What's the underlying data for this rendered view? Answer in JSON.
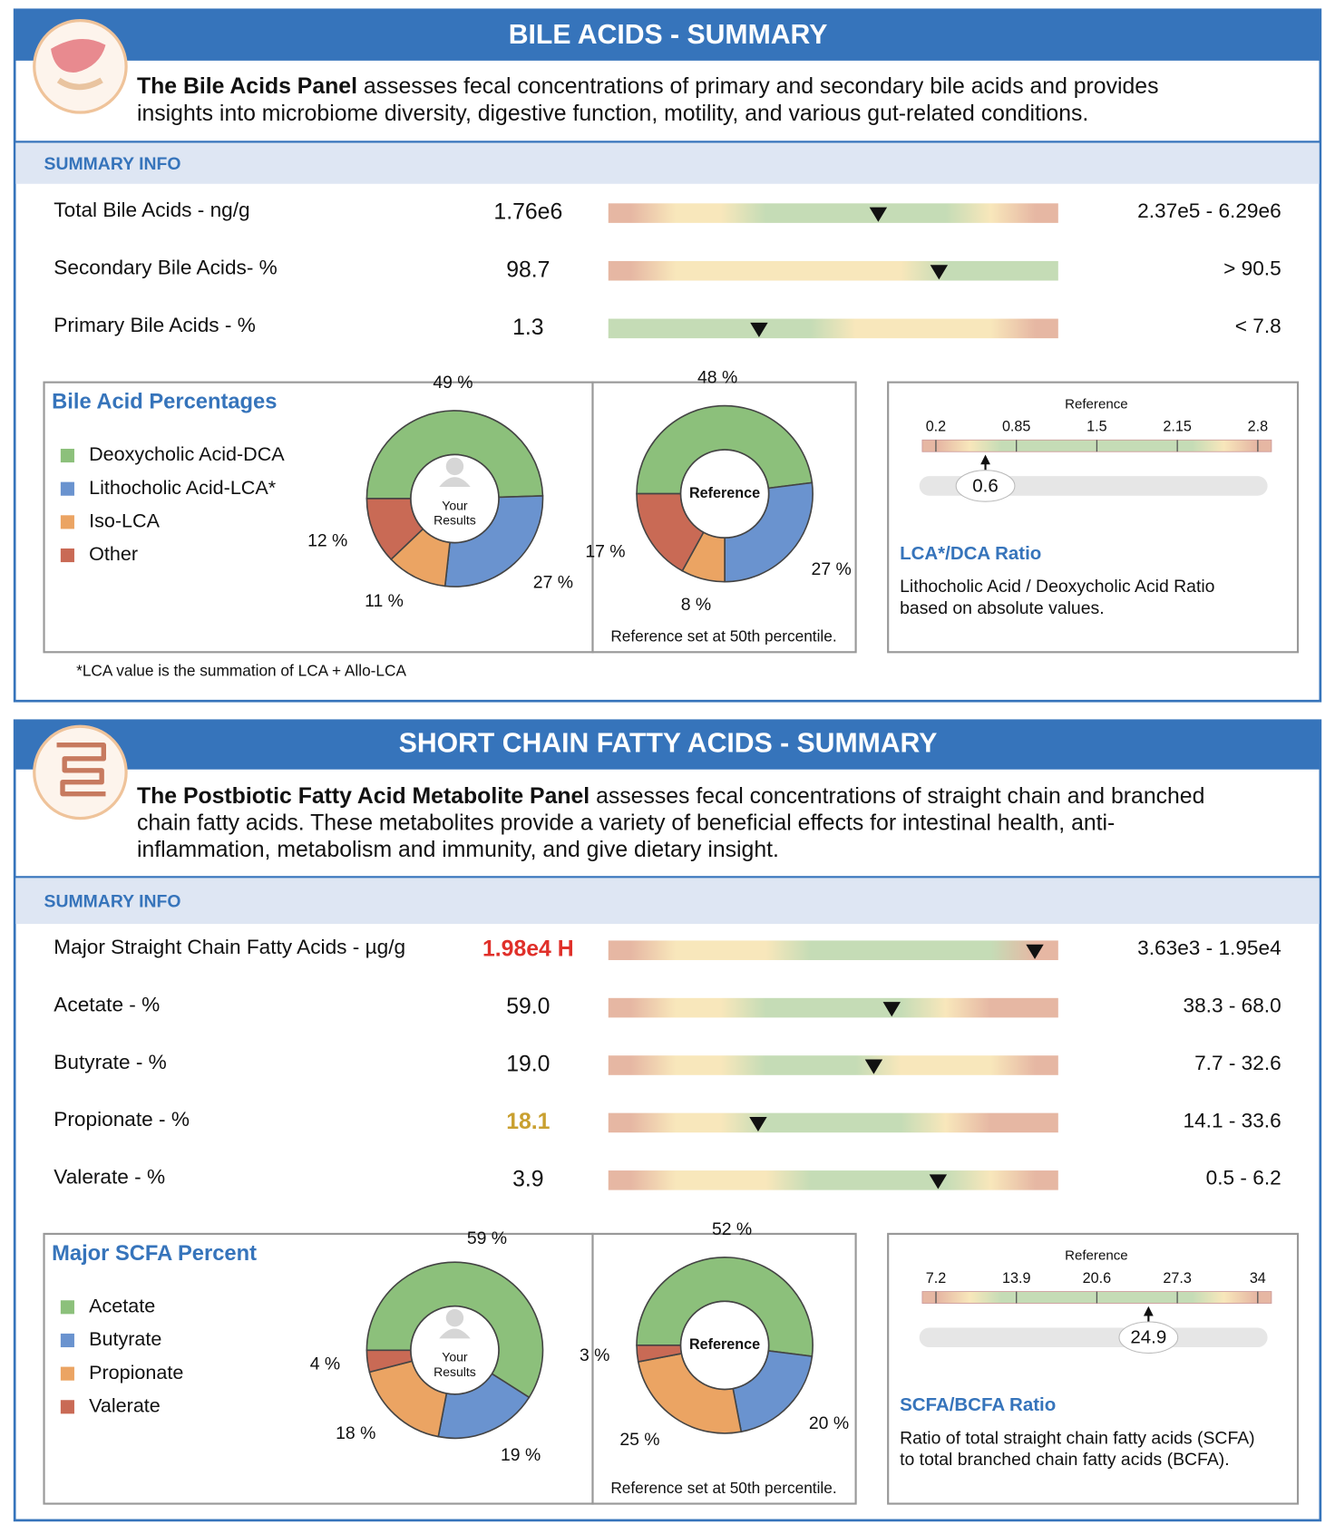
{
  "sections": [
    {
      "title": "BILE ACIDS - SUMMARY",
      "intro": {
        "bold": "The Bile Acids Panel",
        "lines": [
          "assesses fecal concentrations of primary and secondary bile acids and provides",
          "insights into microbiome diversity, digestive function, motility, and various gut-related conditions."
        ]
      },
      "summary_label": "SUMMARY INFO",
      "rows": [
        {
          "name": "Total Bile Acids - ng/g",
          "value": "1.76e6",
          "range": "2.37e5 - 6.29e6",
          "gauge": "RYYGGGGGYR",
          "marker": 0.6
        },
        {
          "name": "Secondary Bile Acids- %",
          "value": "98.7",
          "range": "> 90.5",
          "gauge": "RYYYYYYGGG",
          "marker": 0.735
        },
        {
          "name": "Primary Bile Acids - %",
          "value": "1.3",
          "range": "< 7.8",
          "gauge": "GGGGGYYYYR",
          "marker": 0.335
        }
      ],
      "donut": {
        "title": "Bile Acid Percentages",
        "categories": [
          "Deoxycholic Acid-DCA",
          "Lithocholic Acid-LCA*",
          "Iso-LCA",
          "Other"
        ],
        "colors": [
          "#8cc07b",
          "#6a93cf",
          "#eba463",
          "#c96a55"
        ],
        "values": [
          49,
          27,
          11,
          12
        ],
        "value_labels": [
          "49 %",
          "27 %",
          "11 %",
          "12 %"
        ],
        "center_label": [
          "Your",
          "Results"
        ],
        "reference": {
          "values": [
            48,
            27,
            8,
            17
          ],
          "value_labels": [
            "48 %",
            "27 %",
            "8 %",
            "17 %"
          ],
          "center_label": "Reference",
          "note": "Reference set at 50th percentile."
        }
      },
      "ratio": {
        "axis_title": "Reference",
        "xlim": [
          0.09,
          2.91
        ],
        "xticks": [
          0.2,
          0.85,
          1.5,
          2.15,
          2.8
        ],
        "gauge": "RYGGGGGGGYR",
        "value": 0.6,
        "title": "LCA*/DCA Ratio",
        "description": [
          "Lithocholic Acid / Deoxycholic Acid Ratio",
          "based on absolute values."
        ]
      },
      "footnote": "*LCA value is the summation of LCA + Allo-LCA"
    },
    {
      "title": "SHORT CHAIN FATTY ACIDS - SUMMARY",
      "intro": {
        "bold": "The Postbiotic Fatty Acid Metabolite Panel",
        "lines": [
          "assesses fecal concentrations of straight chain and branched",
          "chain fatty acids. These metabolites provide a variety of beneficial effects for intestinal health, anti-",
          "inflammation, metabolism and immunity, and give dietary insight."
        ]
      },
      "summary_label": "SUMMARY INFO",
      "rows": [
        {
          "name": "Major Straight Chain Fatty Acids - µg/g",
          "value": "1.98e4 H",
          "value_color": "#e0302a",
          "range": "3.63e3 - 1.95e4",
          "gauge": "RYYYGGGGGR",
          "marker": 0.948
        },
        {
          "name": "Acetate - %",
          "value": "59.0",
          "range": "38.3 - 68.0",
          "gauge": "RYYGGGGYRR",
          "marker": 0.63
        },
        {
          "name": "Butyrate - %",
          "value": "19.0",
          "range": "7.7 - 32.6",
          "gauge": "RYYGGGYYYR",
          "marker": 0.59
        },
        {
          "name": "Propionate - %",
          "value": "18.1",
          "value_color": "#c9a030",
          "range": "14.1 - 33.6",
          "gauge": "RYYGGGGYRR",
          "marker": 0.333
        },
        {
          "name": "Valerate - %",
          "value": "3.9",
          "range": "0.5 - 6.2",
          "gauge": "RYYYGGGGYR",
          "marker": 0.733
        }
      ],
      "donut": {
        "title": "Major SCFA Percent",
        "categories": [
          "Acetate",
          "Butyrate",
          "Propionate",
          "Valerate"
        ],
        "colors": [
          "#8cc07b",
          "#6a93cf",
          "#eba463",
          "#c96a55"
        ],
        "values": [
          59,
          19,
          18,
          4
        ],
        "value_labels": [
          "59 %",
          "19 %",
          "18 %",
          "4 %"
        ],
        "center_label": [
          "Your",
          "Results"
        ],
        "reference": {
          "values": [
            52,
            20,
            25,
            3
          ],
          "value_labels": [
            "52 %",
            "20 %",
            "25 %",
            "3 %"
          ],
          "center_label": "Reference",
          "note": "Reference set at 50th percentile."
        }
      },
      "ratio": {
        "axis_title": "Reference",
        "xlim": [
          6.06,
          35.14
        ],
        "xticks": [
          7.2,
          13.9,
          20.6,
          27.3,
          34
        ],
        "gauge": "RYGGGGGGGYR",
        "value": 24.9,
        "title": "SCFA/BCFA Ratio",
        "description": [
          "Ratio of total straight chain fatty acids (SCFA)",
          "to total branched chain fatty acids (BCFA)."
        ]
      }
    }
  ]
}
